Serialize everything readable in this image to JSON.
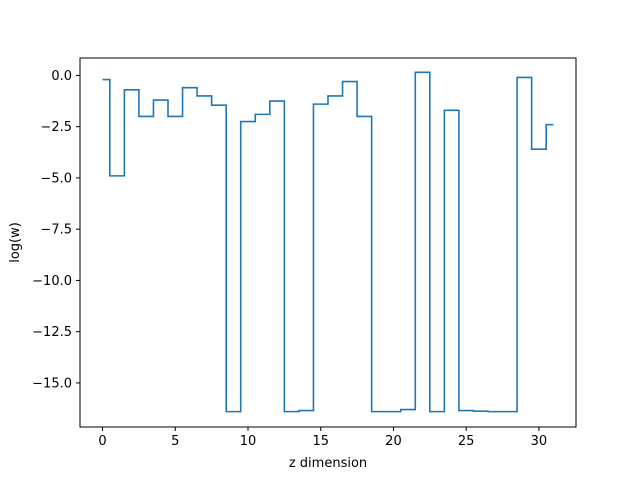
{
  "chart_data": {
    "type": "line",
    "drawstyle": "steps-mid",
    "title": "",
    "xlabel": "z dimension",
    "ylabel": "log(w)",
    "xlim": [
      -1.55,
      32.55
    ],
    "ylim": [
      -17.15,
      0.85
    ],
    "xticks": [
      0,
      5,
      10,
      15,
      20,
      25,
      30
    ],
    "xtick_labels": [
      "0",
      "5",
      "10",
      "15",
      "20",
      "25",
      "30"
    ],
    "yticks": [
      0.0,
      -2.5,
      -5.0,
      -7.5,
      -10.0,
      -12.5,
      -15.0
    ],
    "ytick_labels": [
      "0.0",
      "−2.5",
      "−5.0",
      "−7.5",
      "−10.0",
      "−12.5",
      "−15.0"
    ],
    "grid": false,
    "legend": "none",
    "series": [
      {
        "color": "#1f77b4",
        "x": [
          0,
          1,
          2,
          3,
          4,
          5,
          6,
          7,
          8,
          9,
          10,
          11,
          12,
          13,
          14,
          15,
          16,
          17,
          18,
          19,
          20,
          21,
          22,
          23,
          24,
          25,
          26,
          27,
          28,
          29,
          30,
          31
        ],
        "y": [
          -0.2,
          -4.9,
          -0.7,
          -2.0,
          -1.2,
          -2.0,
          -0.6,
          -1.0,
          -1.45,
          -16.4,
          -2.25,
          -1.9,
          -1.25,
          -16.4,
          -16.35,
          -1.4,
          -1.0,
          -0.3,
          -2.0,
          -16.4,
          -16.4,
          -16.3,
          0.15,
          -16.4,
          -1.7,
          -16.35,
          -16.38,
          -16.4,
          -16.4,
          -0.1,
          -3.6,
          -2.4
        ]
      }
    ]
  }
}
